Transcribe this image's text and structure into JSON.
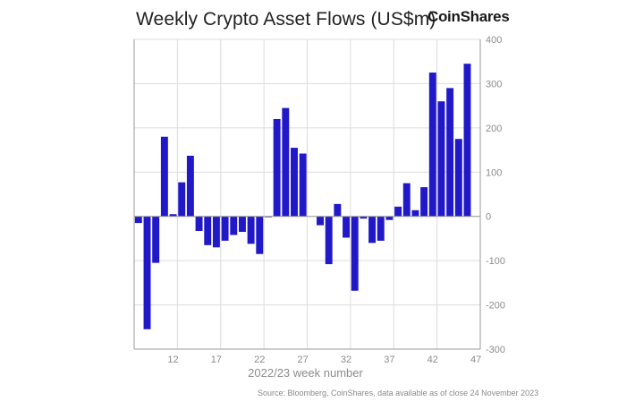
{
  "title": "Weekly Crypto Asset Flows (US$m)",
  "brand": "CoinShares",
  "source": "Source: Bloomberg, CoinShares, data available as of close 24 November 2023",
  "colors": {
    "bar": "#2118c8",
    "grid": "#dcdcdc",
    "axis": "#9a9a9a",
    "text": "#8c8c8c"
  },
  "chart_data": {
    "type": "bar",
    "title": "Weekly Crypto Asset Flows (US$m)",
    "xlabel": "2022/23 week number",
    "ylabel": "",
    "ylim": [
      -300,
      400
    ],
    "yticks": [
      400,
      300,
      200,
      100,
      0,
      -100,
      -200,
      -300
    ],
    "xticks": [
      12,
      17,
      22,
      27,
      32,
      37,
      42,
      47
    ],
    "grid": true,
    "legend": "none",
    "categories": [
      8,
      9,
      10,
      11,
      12,
      13,
      14,
      15,
      16,
      17,
      18,
      19,
      20,
      21,
      22,
      23,
      24,
      25,
      26,
      27,
      28,
      29,
      30,
      31,
      32,
      33,
      34,
      35,
      36,
      37,
      38,
      39,
      40,
      41,
      42,
      43,
      44,
      45,
      46,
      47
    ],
    "values": [
      -15,
      -255,
      -105,
      180,
      5,
      77,
      137,
      -33,
      -65,
      -70,
      -55,
      -42,
      -35,
      -62,
      -85,
      -2,
      220,
      245,
      155,
      142,
      0,
      -20,
      -108,
      28,
      -48,
      -168,
      -5,
      -60,
      -55,
      -8,
      22,
      75,
      14,
      66,
      325,
      260,
      290,
      175,
      345,
      0
    ]
  }
}
